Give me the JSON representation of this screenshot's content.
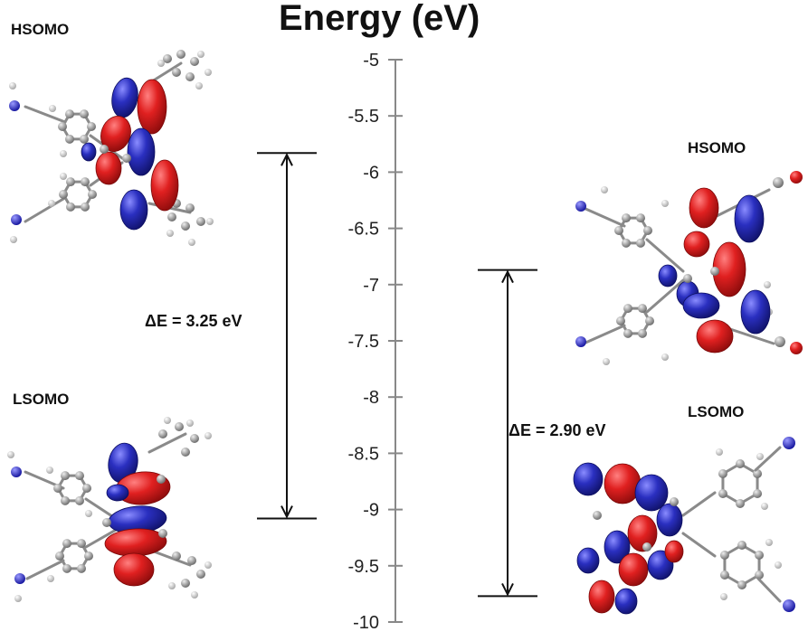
{
  "title": "Energy (eV)",
  "axis": {
    "min": -10,
    "max": -5,
    "ticks": [
      "-5",
      "-5.5",
      "-6",
      "-6.5",
      "-7",
      "-7.5",
      "-8",
      "-8.5",
      "-9",
      "-9.5",
      "-10"
    ],
    "tick_values": [
      -5,
      -5.5,
      -6,
      -6.5,
      -7,
      -7.5,
      -8,
      -8.5,
      -9,
      -9.5,
      -10
    ]
  },
  "left_system": {
    "hsomo_label": "HSOMO",
    "lsomo_label": "LSOMO",
    "hsomo_energy": -5.83,
    "lsomo_energy": -9.08,
    "gap_label": "ΔE = 3.25 eV"
  },
  "right_system": {
    "hsomo_label": "HSOMO",
    "lsomo_label": "LSOMO",
    "hsomo_energy": -6.87,
    "lsomo_energy": -9.77,
    "gap_label": "ΔE = 2.90 eV"
  },
  "colors": {
    "orbital_positive": "#d81e1e",
    "orbital_negative": "#2b2fa8",
    "carbon": "#9a9a9a",
    "hydrogen": "#e8e8e8",
    "nitrogen": "#3a3ad0",
    "axis": "#888888"
  }
}
